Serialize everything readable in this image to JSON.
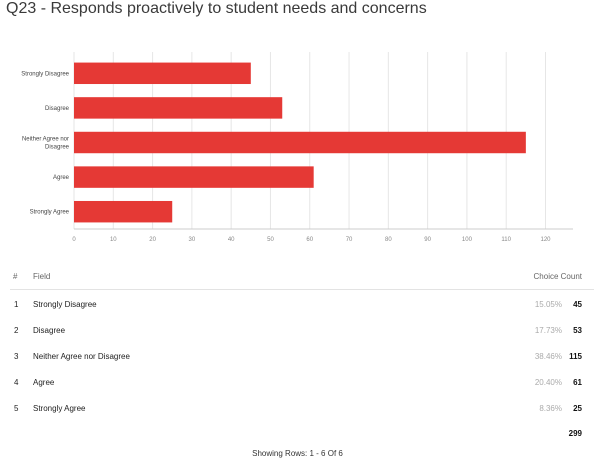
{
  "title": "Q23 - Responds proactively to student needs and concerns",
  "colors": {
    "bar": "#e53935",
    "grid": "#e6e6e6",
    "axis": "#cccccc"
  },
  "chart_data": {
    "type": "bar",
    "orientation": "horizontal",
    "categories": [
      "Strongly Disagree",
      "Disagree",
      "Neither Agree nor Disagree",
      "Agree",
      "Strongly Agree"
    ],
    "category_label_lines": [
      [
        "Strongly Disagree"
      ],
      [
        "Disagree"
      ],
      [
        "Neither Agree nor",
        "Disagree"
      ],
      [
        "Agree"
      ],
      [
        "Strongly Agree"
      ]
    ],
    "values": [
      45,
      53,
      115,
      61,
      25
    ],
    "xlim": [
      0,
      127
    ],
    "xticks": [
      0,
      10,
      20,
      30,
      40,
      50,
      60,
      70,
      80,
      90,
      100,
      110,
      120
    ],
    "grid": true
  },
  "table": {
    "headers": {
      "num": "#",
      "field": "Field",
      "count": "Choice Count"
    },
    "rows": [
      {
        "num": "1",
        "field": "Strongly Disagree",
        "pct": "15.05%",
        "count": "45"
      },
      {
        "num": "2",
        "field": "Disagree",
        "pct": "17.73%",
        "count": "53"
      },
      {
        "num": "3",
        "field": "Neither Agree nor Disagree",
        "pct": "38.46%",
        "count": "115"
      },
      {
        "num": "4",
        "field": "Agree",
        "pct": "20.40%",
        "count": "61"
      },
      {
        "num": "5",
        "field": "Strongly Agree",
        "pct": "8.36%",
        "count": "25"
      }
    ],
    "total": "299"
  },
  "footer": "Showing Rows: 1 - 6 Of 6"
}
